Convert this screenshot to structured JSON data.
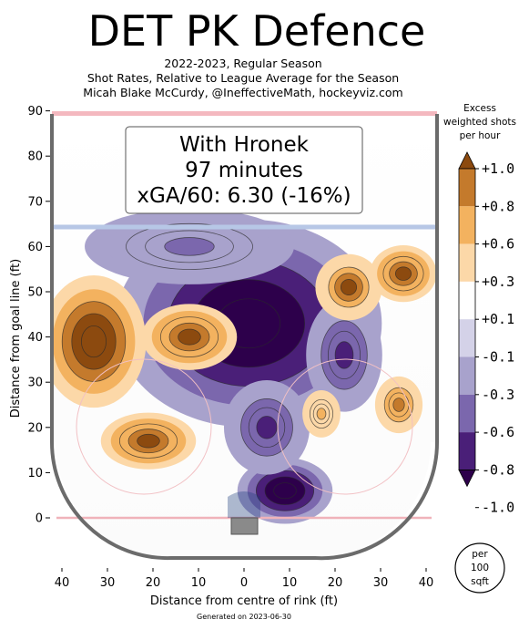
{
  "chart_data": {
    "type": "heatmap",
    "title": "DET PK Defence",
    "subtitle_lines": [
      "2022-2023, Regular Season",
      "Shot Rates, Relative to League Average for the Season",
      "Micah Blake McCurdy, @IneffectiveMath, hockeyviz.com"
    ],
    "annotation_lines": [
      "With Hronek",
      "97 minutes",
      "xGA/60: 6.30 (-16%)"
    ],
    "xlabel": "Distance from centre of rink (ft)",
    "ylabel": "Distance from goal line (ft)",
    "xlim": [
      -42,
      42
    ],
    "ylim": [
      -11,
      90
    ],
    "xticks": [
      -40,
      -30,
      -20,
      -10,
      0,
      10,
      20,
      30,
      40
    ],
    "xtick_labels": [
      "40",
      "30",
      "20",
      "10",
      "0",
      "10",
      "20",
      "30",
      "40"
    ],
    "yticks": [
      0,
      10,
      20,
      30,
      40,
      50,
      60,
      70,
      80,
      90
    ],
    "ytick_labels": [
      "0",
      "10",
      "20",
      "30",
      "40",
      "50",
      "60",
      "70",
      "80",
      "90"
    ],
    "colorbar": {
      "title_lines": [
        "Excess",
        "weighted shots",
        "per hour"
      ],
      "labels": [
        "+1.0",
        "+0.8",
        "+0.6",
        "+0.3",
        "+0.1",
        "-0.1",
        "-0.3",
        "-0.6",
        "-0.8",
        "-1.0"
      ],
      "colors": [
        "#8c4a0f",
        "#c47a2c",
        "#f3b25f",
        "#fcd8a8",
        "#ffffff",
        "#d4d2e8",
        "#a8a2cc",
        "#7b67ad",
        "#4a1f78",
        "#2d004b"
      ],
      "unit_lines": [
        "per",
        "100",
        "sqft"
      ]
    },
    "hotspots": [
      {
        "x": -33,
        "y": 39,
        "value": 1.0
      },
      {
        "x": -12,
        "y": 40,
        "value": 0.9
      },
      {
        "x": -21,
        "y": 17,
        "value": 0.9
      },
      {
        "x": 23,
        "y": 51,
        "value": 0.8
      },
      {
        "x": 35,
        "y": 54,
        "value": 0.9
      },
      {
        "x": 34,
        "y": 25,
        "value": 0.7
      },
      {
        "x": 17,
        "y": 23,
        "value": 0.4
      },
      {
        "x": 1,
        "y": 43,
        "value": -1.0
      },
      {
        "x": 9,
        "y": 6,
        "value": -1.0
      },
      {
        "x": -12,
        "y": 60,
        "value": -0.4
      },
      {
        "x": 22,
        "y": 36,
        "value": -0.6
      },
      {
        "x": 5,
        "y": 20,
        "value": -0.6
      }
    ],
    "footer": "Generated on 2023-06-30"
  }
}
